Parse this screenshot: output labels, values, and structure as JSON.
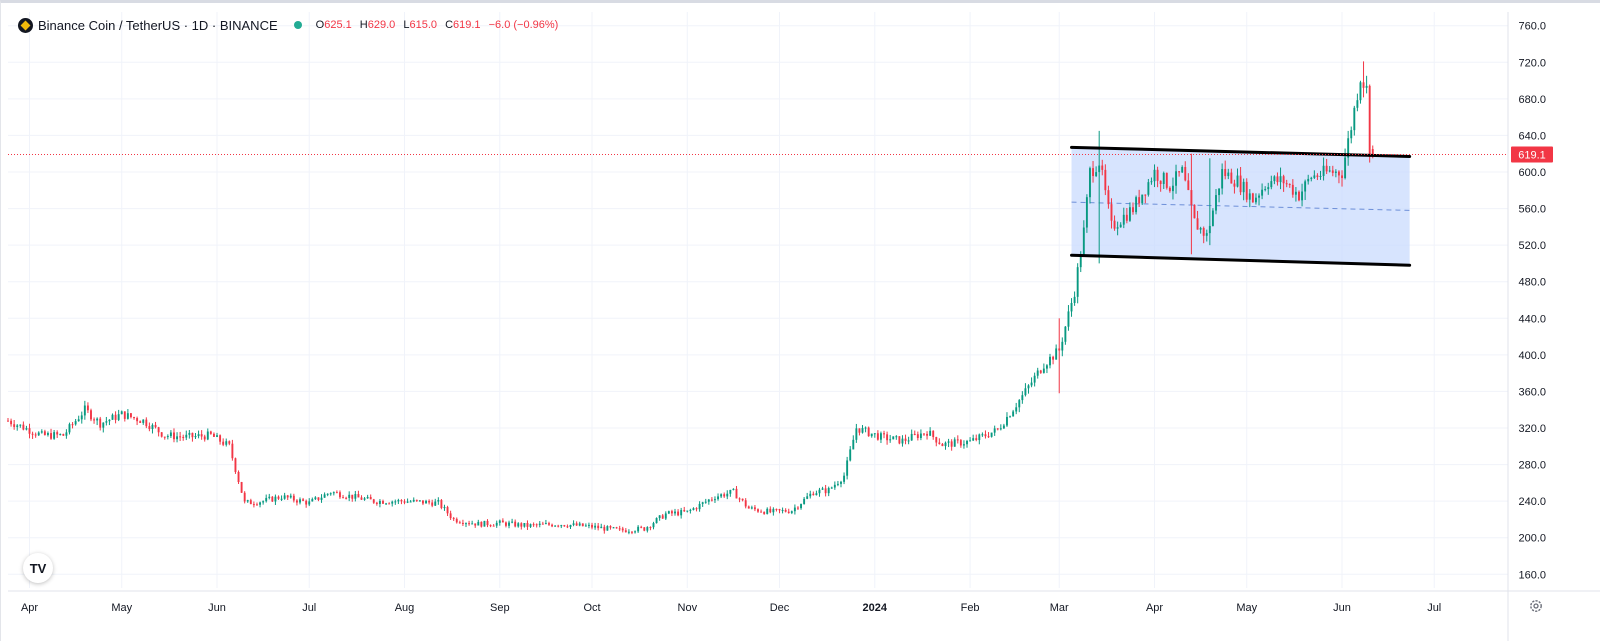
{
  "legend": {
    "symbol": "Binance Coin / TetherUS · 1D · BINANCE",
    "open_label": "O",
    "open": "625.1",
    "high_label": "H",
    "high": "629.0",
    "low_label": "L",
    "low": "615.0",
    "close_label": "C",
    "close": "619.1",
    "change": "−6.0 (−0.96%)"
  },
  "logo": {
    "text": "TV",
    "icon": "tradingview-logo-icon"
  },
  "settings": {
    "icon": "gear-icon"
  },
  "chart_data": {
    "type": "candlestick",
    "title": "Binance Coin / TetherUS · 1D · BINANCE",
    "xlabel": "",
    "ylabel": "",
    "y_ticks": [
      160,
      200,
      240,
      280,
      320,
      360,
      400,
      440,
      480,
      520,
      560,
      600,
      640,
      680,
      720,
      760
    ],
    "y_tick_labels": [
      "160.0",
      "200.0",
      "240.0",
      "280.0",
      "320.0",
      "360.0",
      "400.0",
      "440.0",
      "480.0",
      "520.0",
      "560.0",
      "600.0",
      "640.0",
      "680.0",
      "720.0",
      "760.0"
    ],
    "ylim": [
      145,
      775
    ],
    "x_range": [
      "2023-03-25",
      "2024-07-25"
    ],
    "x_ticks": [
      {
        "date": "2023-04-01",
        "label": "Apr"
      },
      {
        "date": "2023-05-01",
        "label": "May"
      },
      {
        "date": "2023-06-01",
        "label": "Jun"
      },
      {
        "date": "2023-07-01",
        "label": "Jul"
      },
      {
        "date": "2023-08-01",
        "label": "Aug"
      },
      {
        "date": "2023-09-01",
        "label": "Sep"
      },
      {
        "date": "2023-10-01",
        "label": "Oct"
      },
      {
        "date": "2023-11-01",
        "label": "Nov"
      },
      {
        "date": "2023-12-01",
        "label": "Dec"
      },
      {
        "date": "2024-01-01",
        "label": "2024"
      },
      {
        "date": "2024-02-01",
        "label": "Feb"
      },
      {
        "date": "2024-03-01",
        "label": "Mar"
      },
      {
        "date": "2024-04-01",
        "label": "Apr"
      },
      {
        "date": "2024-05-01",
        "label": "May"
      },
      {
        "date": "2024-06-01",
        "label": "Jun"
      },
      {
        "date": "2024-07-01",
        "label": "Jul"
      }
    ],
    "grid": true,
    "last_price": 619.1,
    "last_price_label": "619.1",
    "colors": {
      "up": "#089981",
      "down": "#f23645",
      "channel_fill": "#c9dbfd",
      "channel_line": "#000000",
      "midline": "#6d8fd8",
      "grid": "#f0f3fa",
      "last_price": "#f23645"
    },
    "price_path": [
      [
        "2023-03-25",
        328
      ],
      [
        "2023-04-05",
        312
      ],
      [
        "2023-04-12",
        312
      ],
      [
        "2023-04-19",
        340
      ],
      [
        "2023-04-24",
        325
      ],
      [
        "2023-05-01",
        335
      ],
      [
        "2023-05-08",
        328
      ],
      [
        "2023-05-15",
        312
      ],
      [
        "2023-05-22",
        310
      ],
      [
        "2023-05-30",
        312
      ],
      [
        "2023-06-05",
        300
      ],
      [
        "2023-06-10",
        238
      ],
      [
        "2023-06-16",
        240
      ],
      [
        "2023-06-22",
        245
      ],
      [
        "2023-07-01",
        238
      ],
      [
        "2023-07-08",
        250
      ],
      [
        "2023-07-15",
        245
      ],
      [
        "2023-07-22",
        240
      ],
      [
        "2023-08-01",
        240
      ],
      [
        "2023-08-12",
        238
      ],
      [
        "2023-08-17",
        220
      ],
      [
        "2023-08-25",
        215
      ],
      [
        "2023-09-01",
        216
      ],
      [
        "2023-09-10",
        213
      ],
      [
        "2023-09-20",
        215
      ],
      [
        "2023-10-01",
        212
      ],
      [
        "2023-10-10",
        208
      ],
      [
        "2023-10-18",
        210
      ],
      [
        "2023-10-25",
        226
      ],
      [
        "2023-11-01",
        228
      ],
      [
        "2023-11-10",
        245
      ],
      [
        "2023-11-16",
        250
      ],
      [
        "2023-11-21",
        232
      ],
      [
        "2023-11-28",
        228
      ],
      [
        "2023-12-05",
        230
      ],
      [
        "2023-12-12",
        250
      ],
      [
        "2023-12-17",
        252
      ],
      [
        "2023-12-22",
        268
      ],
      [
        "2023-12-26",
        320
      ],
      [
        "2024-01-03",
        310
      ],
      [
        "2024-01-10",
        306
      ],
      [
        "2024-01-18",
        316
      ],
      [
        "2024-01-23",
        302
      ],
      [
        "2024-02-01",
        305
      ],
      [
        "2024-02-10",
        318
      ],
      [
        "2024-02-18",
        355
      ],
      [
        "2024-02-25",
        390
      ],
      [
        "2024-03-01",
        405
      ],
      [
        "2024-03-06",
        470
      ],
      [
        "2024-03-09",
        535
      ],
      [
        "2024-03-11",
        600
      ],
      [
        "2024-03-14",
        612
      ],
      [
        "2024-03-18",
        540
      ],
      [
        "2024-03-25",
        560
      ],
      [
        "2024-04-01",
        600
      ],
      [
        "2024-04-06",
        585
      ],
      [
        "2024-04-10",
        600
      ],
      [
        "2024-04-14",
        545
      ],
      [
        "2024-04-18",
        530
      ],
      [
        "2024-04-23",
        600
      ],
      [
        "2024-04-28",
        590
      ],
      [
        "2024-05-03",
        570
      ],
      [
        "2024-05-08",
        590
      ],
      [
        "2024-05-13",
        590
      ],
      [
        "2024-05-18",
        575
      ],
      [
        "2024-05-22",
        595
      ],
      [
        "2024-05-28",
        600
      ],
      [
        "2024-06-01",
        600
      ],
      [
        "2024-06-04",
        650
      ],
      [
        "2024-06-07",
        705
      ],
      [
        "2024-06-09",
        690
      ],
      [
        "2024-06-10",
        625
      ],
      [
        "2024-06-11",
        619.1
      ]
    ],
    "volatility_markers": [
      [
        "2024-03-01",
        358,
        440
      ],
      [
        "2024-03-14",
        500,
        645
      ],
      [
        "2024-04-13",
        510,
        620
      ],
      [
        "2024-04-19",
        520,
        615
      ],
      [
        "2024-06-08",
        690,
        721
      ]
    ],
    "drawings": {
      "channel_top": [
        [
          "2024-03-05",
          627
        ],
        [
          "2024-06-23",
          617
        ]
      ],
      "channel_bottom": [
        [
          "2024-03-05",
          509
        ],
        [
          "2024-06-23",
          498
        ]
      ],
      "channel_mid": [
        [
          "2024-03-05",
          567
        ],
        [
          "2024-06-23",
          558
        ]
      ]
    }
  }
}
